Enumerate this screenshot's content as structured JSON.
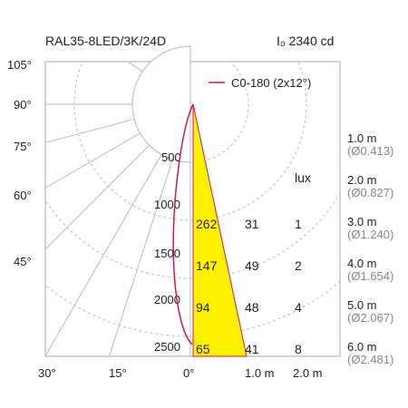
{
  "header": {
    "product": "RAL35-8LED/3K/24D",
    "intensity": "I₀ 2340 cd"
  },
  "legend": {
    "label": "C0-180 (2x12°)",
    "color": "#d4145a"
  },
  "polar": {
    "angle_labels": [
      "105°",
      "90°",
      "75°",
      "60°",
      "45°"
    ],
    "bottom_angle_labels": [
      "30°",
      "15°",
      "0°"
    ],
    "ring_labels": [
      "500",
      "1000",
      "1500",
      "2000",
      "2500"
    ]
  },
  "cone": {
    "fill_color": "#fff200",
    "x_axis_labels": [
      "1.0 m",
      "2.0 m"
    ],
    "lux_header": "lux",
    "rows": [
      {
        "distance": "1.0 m",
        "diameter": "(Ø0.413)",
        "values": []
      },
      {
        "distance": "2.0 m",
        "diameter": "(Ø0.827)",
        "values": []
      },
      {
        "distance": "3.0 m",
        "diameter": "(Ø1.240)",
        "values": [
          "262",
          "31",
          "1"
        ]
      },
      {
        "distance": "4.0 m",
        "diameter": "(Ø1.654)",
        "values": [
          "147",
          "49",
          "2"
        ]
      },
      {
        "distance": "5.0 m",
        "diameter": "(Ø2.067)",
        "values": [
          "94",
          "48",
          "4"
        ]
      },
      {
        "distance": "6.0 m",
        "diameter": "(Ø2.481)",
        "values": [
          "65",
          "41",
          "8"
        ]
      }
    ]
  }
}
